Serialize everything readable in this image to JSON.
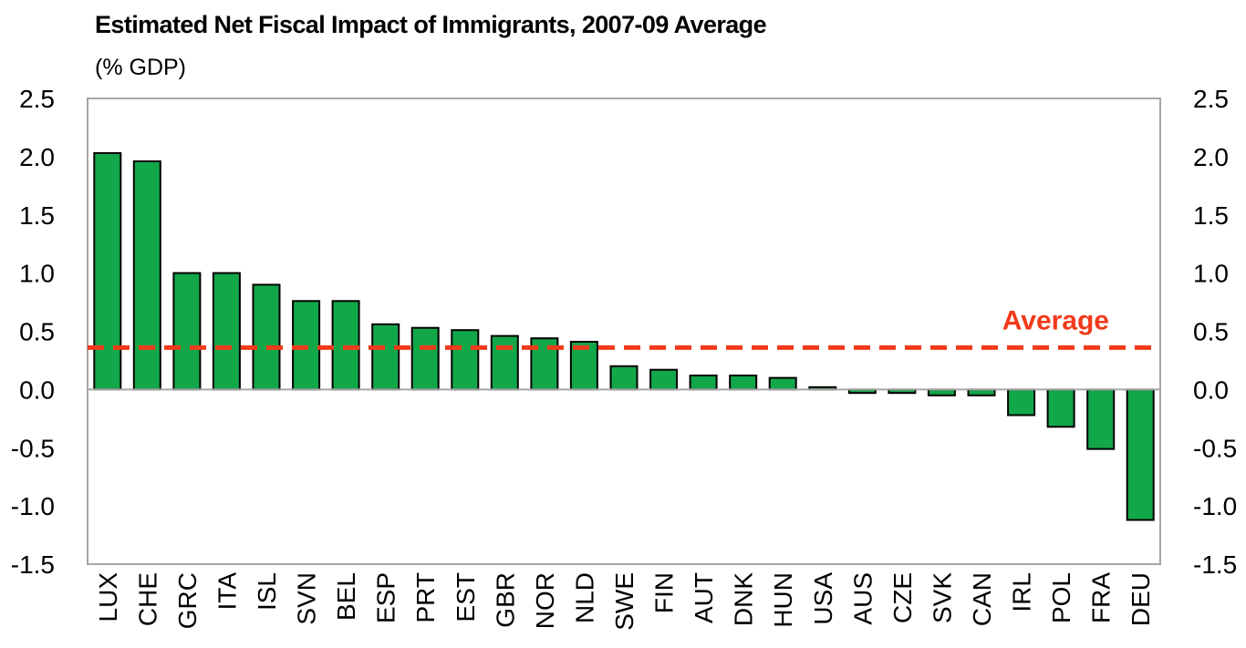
{
  "chart_data": {
    "type": "bar",
    "title": "Estimated Net Fiscal Impact of Immigrants, 2007-09 Average",
    "subtitle": "(% GDP)",
    "xlabel": "",
    "ylabel": "",
    "categories": [
      "LUX",
      "CHE",
      "GRC",
      "ITA",
      "ISL",
      "SVN",
      "BEL",
      "ESP",
      "PRT",
      "EST",
      "GBR",
      "NOR",
      "NLD",
      "SWE",
      "FIN",
      "AUT",
      "DNK",
      "HUN",
      "USA",
      "AUS",
      "CZE",
      "SVK",
      "CAN",
      "IRL",
      "POL",
      "FRA",
      "DEU"
    ],
    "values": [
      2.03,
      1.96,
      1.0,
      1.0,
      0.9,
      0.76,
      0.76,
      0.56,
      0.53,
      0.51,
      0.46,
      0.44,
      0.41,
      0.2,
      0.17,
      0.12,
      0.12,
      0.1,
      0.02,
      -0.03,
      -0.03,
      -0.05,
      -0.05,
      -0.22,
      -0.32,
      -0.51,
      -1.12
    ],
    "ylim": [
      -1.5,
      2.5
    ],
    "yticks": [
      "2.5",
      "2.0",
      "1.5",
      "1.0",
      "0.5",
      "0.0",
      "-0.5",
      "-1.0",
      "-1.5"
    ],
    "ytick_values": [
      2.5,
      2.0,
      1.5,
      1.0,
      0.5,
      0.0,
      -0.5,
      -1.0,
      -1.5
    ],
    "average": {
      "label": "Average",
      "value": 0.36
    },
    "secondary_axis": true,
    "grid": false,
    "colors": {
      "bar": "#12A84A",
      "bar_edge": "#000000",
      "average": "#F23A1A",
      "frame": "#A6A6A6"
    }
  }
}
